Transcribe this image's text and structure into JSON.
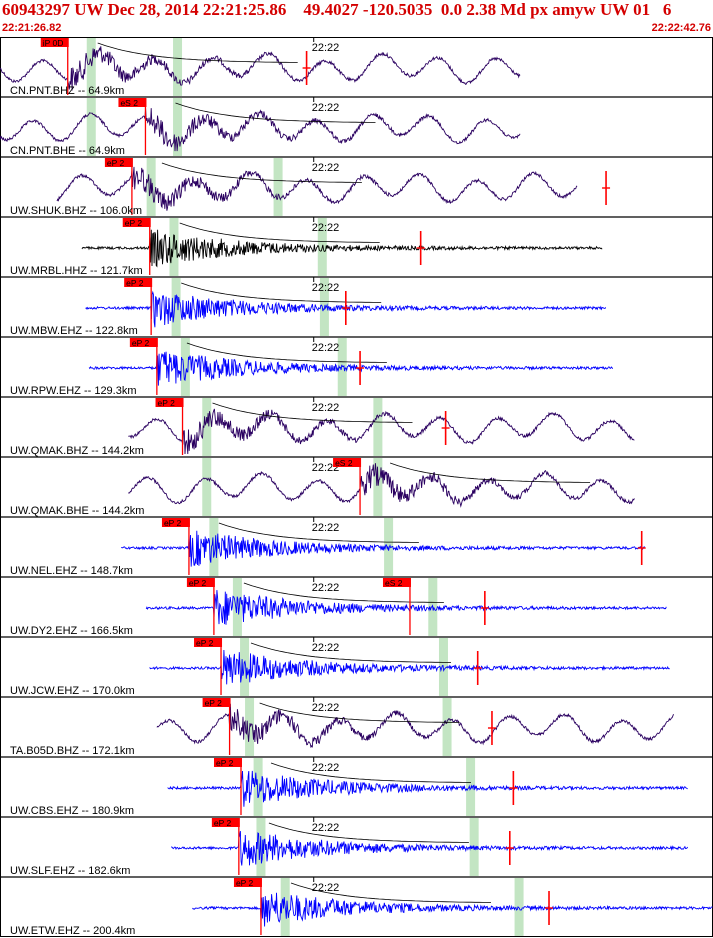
{
  "header": {
    "title": "60943297 UW Dec 28, 2014 22:21:25.86    49.4027 -120.5035  0.0 2.38 Md px amyw UW 01   6",
    "start_time": "22:21:26.82",
    "end_time": "22:22:42.76"
  },
  "colors": {
    "header_text": "#d40000",
    "pick": "#ff0000",
    "window": "#b8e0b8",
    "trace_blue": "#0000ff",
    "trace_purple": "#2a0060",
    "trace_black": "#000000",
    "label": "#000000"
  },
  "chart_data": {
    "type": "seismogram-stack",
    "time_range": [
      "22:21:26.82",
      "22:22:42.76"
    ],
    "minute_mark": "22:22",
    "traces": [
      {
        "label": "CN.PNT.BHZ -- 64.9km",
        "color": "purple",
        "pick": "iP 0D",
        "pick_pos": 0.095,
        "win": [
          0.128,
          0.249
        ],
        "s_pick": null,
        "coda": 0.43,
        "signal": [
          0.0,
          0.73
        ],
        "kind": "long"
      },
      {
        "label": "CN.PNT.BHE -- 64.9km",
        "color": "purple",
        "pick": "eS 2",
        "pick_pos": 0.204,
        "win": [
          0.128,
          0.249
        ],
        "s_pick": null,
        "coda": null,
        "signal": [
          0.0,
          0.73
        ],
        "kind": "long"
      },
      {
        "label": "UW.SHUK.BHZ -- 106.0km",
        "color": "purple",
        "pick": "eP 2",
        "pick_pos": 0.185,
        "win": [
          0.212,
          0.39
        ],
        "s_pick": null,
        "coda": 0.85,
        "signal": [
          0.08,
          0.81
        ],
        "kind": "long"
      },
      {
        "label": "UW.MRBL.HHZ -- 121.7km",
        "color": "black",
        "pick": "eP 2",
        "pick_pos": 0.21,
        "win": [
          0.244,
          0.452
        ],
        "s_pick": null,
        "coda": 0.59,
        "signal": [
          0.115,
          0.845
        ],
        "kind": "short"
      },
      {
        "label": "UW.MBW.EHZ -- 122.8km",
        "color": "blue",
        "pick": "eP 2",
        "pick_pos": 0.212,
        "win": [
          0.247,
          0.455
        ],
        "s_pick": null,
        "coda": 0.485,
        "signal": [
          0.12,
          0.85
        ],
        "kind": "short"
      },
      {
        "label": "UW.RPW.EHZ -- 129.3km",
        "color": "blue",
        "pick": "eP 2",
        "pick_pos": 0.22,
        "win": [
          0.26,
          0.48
        ],
        "s_pick": null,
        "coda": 0.505,
        "signal": [
          0.125,
          0.86
        ],
        "kind": "short"
      },
      {
        "label": "UW.QMAK.BHZ -- 144.2km",
        "color": "purple",
        "pick": "eP 2",
        "pick_pos": 0.256,
        "win": [
          0.29,
          0.53
        ],
        "s_pick": null,
        "coda": 0.625,
        "signal": [
          0.18,
          0.89
        ],
        "kind": "long"
      },
      {
        "label": "UW.QMAK.BHE -- 144.2km",
        "color": "purple",
        "pick": "eS 2",
        "pick_pos": 0.505,
        "win": [
          0.29,
          0.53
        ],
        "s_pick": null,
        "coda": null,
        "signal": [
          0.18,
          0.89
        ],
        "kind": "long"
      },
      {
        "label": "UW.NEL.EHZ -- 148.7km",
        "color": "blue",
        "pick": "eP 2",
        "pick_pos": 0.265,
        "win": [
          0.3,
          0.545
        ],
        "s_pick": null,
        "coda": 0.9,
        "signal": [
          0.17,
          0.905
        ],
        "kind": "short"
      },
      {
        "label": "UW.DY2.EHZ -- 166.5km",
        "color": "blue",
        "pick": "eP 2",
        "pick_pos": 0.3,
        "win": [
          0.333,
          0.607
        ],
        "s_pick": "eS 2",
        "s_pick_pos": 0.575,
        "coda": 0.68,
        "signal": [
          0.205,
          0.935
        ],
        "kind": "short"
      },
      {
        "label": "UW.JCW.EHZ -- 170.0km",
        "color": "blue",
        "pick": "eP 2",
        "pick_pos": 0.31,
        "win": [
          0.343,
          0.622
        ],
        "s_pick": null,
        "coda": 0.67,
        "signal": [
          0.21,
          0.94
        ],
        "kind": "short"
      },
      {
        "label": "TA.B05D.BHZ -- 172.1km",
        "color": "purple",
        "pick": "eP 2",
        "pick_pos": 0.322,
        "win": [
          0.35,
          0.627
        ],
        "s_pick": null,
        "coda": 0.69,
        "signal": [
          0.22,
          0.945
        ],
        "kind": "long"
      },
      {
        "label": "UW.CBS.EHZ -- 180.9km",
        "color": "blue",
        "pick": "eP 2",
        "pick_pos": 0.338,
        "win": [
          0.362,
          0.66
        ],
        "s_pick": null,
        "coda": 0.72,
        "signal": [
          0.235,
          0.965
        ],
        "kind": "short"
      },
      {
        "label": "UW.SLF.EHZ -- 182.6km",
        "color": "blue",
        "pick": "eP 2",
        "pick_pos": 0.335,
        "win": [
          0.366,
          0.665
        ],
        "s_pick": null,
        "coda": 0.715,
        "signal": [
          0.24,
          0.965
        ],
        "kind": "short"
      },
      {
        "label": "UW.ETW.EHZ -- 200.4km",
        "color": "blue",
        "pick": "eP 2",
        "pick_pos": 0.366,
        "win": [
          0.4,
          0.728
        ],
        "s_pick": null,
        "coda": 0.77,
        "signal": [
          0.27,
          1.0
        ],
        "kind": "short"
      }
    ]
  }
}
